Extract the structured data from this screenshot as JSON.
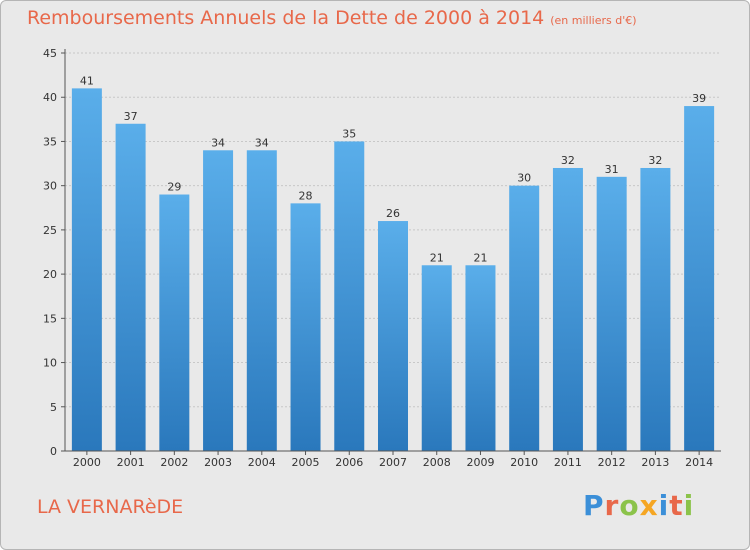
{
  "header": {
    "title": "Remboursements Annuels de la Dette de 2000 à 2014",
    "subtitle": "(en milliers d'€)"
  },
  "footer": {
    "place": "LA VERNARèDE",
    "logo": {
      "text": "Proxiti",
      "letter_colors": [
        "#3b8fd8",
        "#e8684a",
        "#8bc34a",
        "#f5a623",
        "#3b8fd8",
        "#e8684a",
        "#8bc34a"
      ]
    }
  },
  "colors": {
    "title": "#e8684a",
    "bar_top": "#5aaeea",
    "bar_bottom": "#2a78bc",
    "background": "#e9e9e9",
    "grid": "#c8c8c8",
    "axis": "#555555",
    "text": "#333333"
  },
  "chart_data": {
    "type": "bar",
    "title": "Remboursements Annuels de la Dette de 2000 à 2014",
    "subtitle": "(en milliers d'€)",
    "xlabel": "",
    "ylabel": "",
    "categories": [
      "2000",
      "2001",
      "2002",
      "2003",
      "2004",
      "2005",
      "2006",
      "2007",
      "2008",
      "2009",
      "2010",
      "2011",
      "2012",
      "2013",
      "2014"
    ],
    "values": [
      41,
      37,
      29,
      34,
      34,
      28,
      35,
      26,
      21,
      21,
      30,
      32,
      31,
      32,
      39
    ],
    "ylim": [
      0,
      45
    ],
    "yticks": [
      0,
      5,
      10,
      15,
      20,
      25,
      30,
      35,
      40,
      45
    ],
    "grid": true,
    "data_labels": true
  }
}
